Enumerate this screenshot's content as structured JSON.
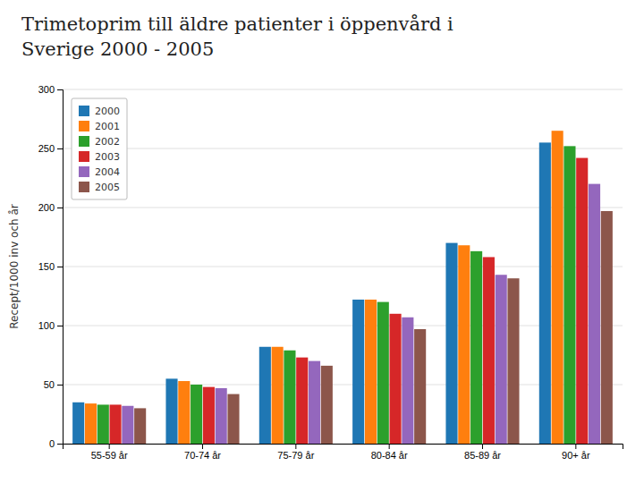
{
  "chart_data": {
    "type": "bar",
    "title": "Trimetoprim till äldre patienter i öppenvård i",
    "subtitle": "Sverige 2000 - 2005",
    "categories": [
      "55-59 år",
      "70-74 år",
      "75-79 år",
      "80-84 år",
      "85-89 år",
      "90+ år"
    ],
    "series": [
      {
        "name": "2000",
        "values": [
          35,
          55,
          82,
          122,
          170,
          255
        ]
      },
      {
        "name": "2001",
        "values": [
          34,
          53,
          82,
          122,
          168,
          265
        ]
      },
      {
        "name": "2002",
        "values": [
          33,
          50,
          79,
          120,
          163,
          252
        ]
      },
      {
        "name": "2003",
        "values": [
          33,
          48,
          73,
          110,
          158,
          242
        ]
      },
      {
        "name": "2004",
        "values": [
          32,
          47,
          70,
          107,
          143,
          220
        ]
      },
      {
        "name": "2005",
        "values": [
          30,
          42,
          66,
          97,
          140,
          197
        ]
      }
    ],
    "ylabel": "Recept/1000 inv och år",
    "ylim": [
      0,
      300
    ],
    "yticks": [
      0,
      50,
      100,
      150,
      200,
      250,
      300
    ],
    "grid": true,
    "legend": "top-left"
  }
}
